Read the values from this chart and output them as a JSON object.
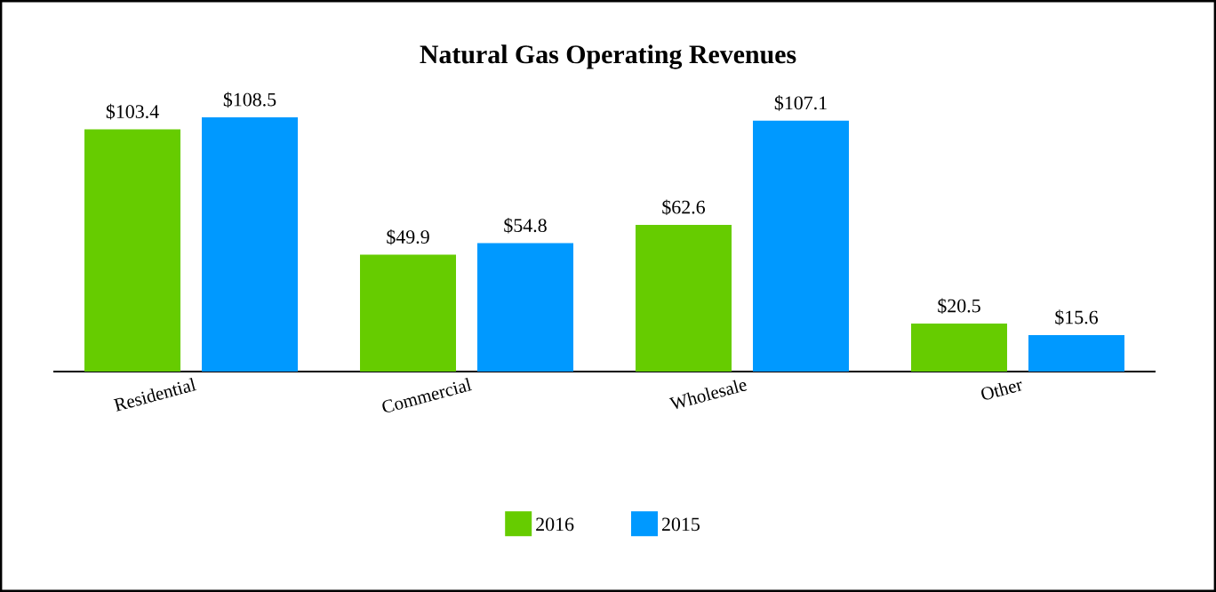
{
  "chart_data": {
    "type": "bar",
    "title": "Natural Gas Operating Revenues",
    "categories": [
      "Residential",
      "Commercial",
      "Wholesale",
      "Other"
    ],
    "tick_labels": "x",
    "legend": "bottom",
    "series": [
      {
        "name": "2016",
        "color": "#66cc00",
        "values": [
          103.4,
          49.9,
          62.6,
          20.5
        ],
        "value_labels": [
          "$103.4",
          "$49.9",
          "$62.6",
          "$20.5"
        ]
      },
      {
        "name": "2015",
        "color": "#0099ff",
        "values": [
          108.5,
          54.8,
          107.1,
          15.6
        ],
        "value_labels": [
          "$108.5",
          "$54.8",
          "$107.1",
          "$15.6"
        ]
      }
    ]
  }
}
